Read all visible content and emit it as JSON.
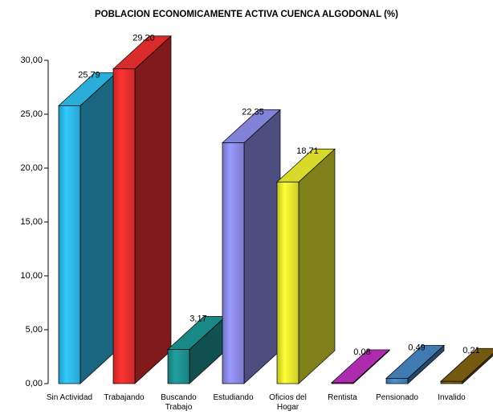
{
  "chart_data": {
    "type": "bar3d",
    "title": "POBLACION ECONOMICAMENTE ACTIVA CUENCA ALGODONAL (%)",
    "categories": [
      "Sin Actividad",
      "Trabajando",
      "Buscando Trabajo",
      "Estudiando",
      "Oficios del Hogar",
      "Rentista",
      "Pensionado",
      "Invalido"
    ],
    "values": [
      25.79,
      29.2,
      3.17,
      22.35,
      18.71,
      0.08,
      0.49,
      0.21
    ],
    "value_labels": [
      "25,79",
      "29,20",
      "3,17",
      "22,35",
      "18,71",
      "0,08",
      "0,49",
      "0,21"
    ],
    "colors": [
      "#33ccff",
      "#ff3333",
      "#20a0a0",
      "#9999ff",
      "#ffff33",
      "#cc33cc",
      "#4a8fd0",
      "#8b6914"
    ],
    "ylim": [
      0,
      30
    ],
    "yticks": [
      {
        "value": 0,
        "label": "0,00"
      },
      {
        "value": 5,
        "label": "5,00"
      },
      {
        "value": 10,
        "label": "10,00"
      },
      {
        "value": 15,
        "label": "15,00"
      },
      {
        "value": 20,
        "label": "20,00"
      },
      {
        "value": 25,
        "label": "25,00"
      },
      {
        "value": 30,
        "label": "30,00"
      }
    ]
  }
}
